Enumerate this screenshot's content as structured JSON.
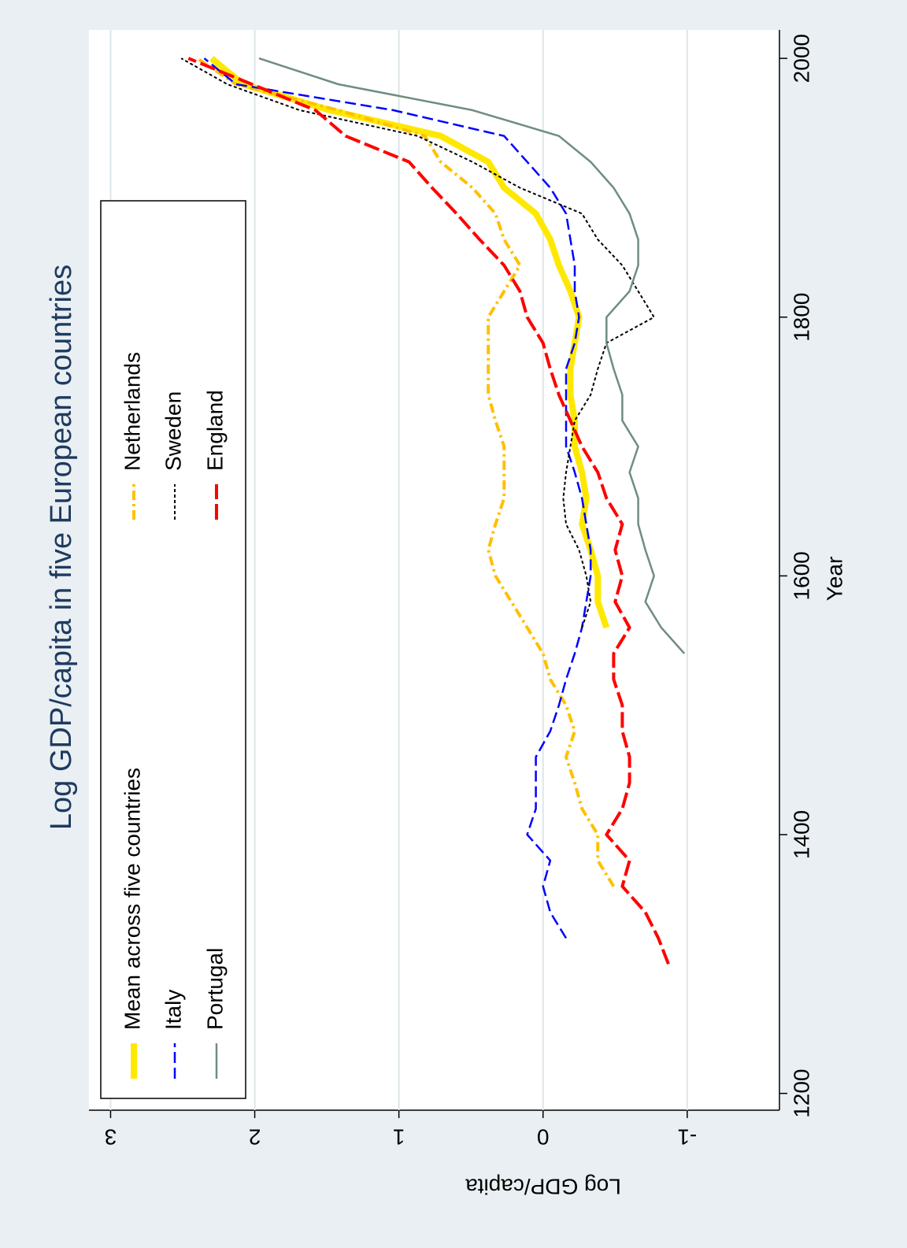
{
  "chart_data": {
    "type": "line",
    "title": "Log GDP/capita in five European countries",
    "x_label": "Year",
    "y_label": "Log GDP/capita",
    "x": [
      1300,
      1320,
      1340,
      1360,
      1380,
      1400,
      1420,
      1440,
      1460,
      1480,
      1500,
      1520,
      1540,
      1560,
      1580,
      1600,
      1620,
      1640,
      1660,
      1680,
      1700,
      1720,
      1740,
      1760,
      1780,
      1800,
      1820,
      1840,
      1860,
      1880,
      1900,
      1920,
      1940,
      1960,
      1980,
      2000
    ],
    "xlim": [
      1187,
      2022
    ],
    "xticks": [
      1200,
      1400,
      1600,
      1800,
      2000
    ],
    "ylim": [
      -1.64,
      3.15
    ],
    "yticks": [
      -1,
      0,
      1,
      2,
      3
    ],
    "grid": true,
    "series": [
      {
        "name": "Mean across five countries",
        "color": "#ffe800",
        "values": [
          null,
          null,
          null,
          null,
          null,
          null,
          null,
          null,
          null,
          null,
          null,
          null,
          null,
          -0.44,
          -0.38,
          -0.38,
          -0.33,
          -0.27,
          -0.3,
          -0.27,
          -0.22,
          -0.22,
          -0.19,
          -0.19,
          -0.22,
          -0.25,
          -0.19,
          -0.11,
          -0.05,
          0.05,
          0.27,
          0.38,
          0.71,
          1.48,
          2.08,
          2.3
        ]
      },
      {
        "name": "Netherlands",
        "color": "#ffc000",
        "values": [
          null,
          null,
          null,
          -0.49,
          -0.38,
          -0.38,
          -0.27,
          -0.22,
          -0.16,
          -0.22,
          -0.16,
          -0.05,
          0,
          0.11,
          0.22,
          0.33,
          0.38,
          0.33,
          0.27,
          0.27,
          0.27,
          0.33,
          0.38,
          0.38,
          0.38,
          0.38,
          0.27,
          0.16,
          0.27,
          0.33,
          0.49,
          0.71,
          0.82,
          1.42,
          2.13,
          2.4
        ]
      },
      {
        "name": "Italy",
        "color": "#0000ff",
        "values": [
          null,
          -0.16,
          -0.05,
          0,
          -0.05,
          0.11,
          0.05,
          0.05,
          0.05,
          -0.05,
          -0.11,
          -0.16,
          -0.22,
          -0.27,
          -0.3,
          -0.33,
          -0.33,
          -0.3,
          -0.27,
          -0.22,
          -0.16,
          -0.16,
          -0.16,
          -0.16,
          -0.22,
          -0.25,
          -0.22,
          -0.22,
          -0.19,
          -0.16,
          -0.05,
          0.11,
          0.27,
          1.04,
          2.13,
          2.35
        ]
      },
      {
        "name": "Sweden",
        "color": "#000000",
        "values": [
          null,
          null,
          null,
          null,
          null,
          null,
          null,
          null,
          null,
          null,
          null,
          null,
          null,
          -0.27,
          -0.33,
          -0.3,
          -0.25,
          -0.16,
          -0.14,
          -0.16,
          -0.19,
          -0.22,
          -0.33,
          -0.38,
          -0.44,
          -0.77,
          -0.66,
          -0.55,
          -0.38,
          -0.27,
          0.16,
          0.49,
          0.87,
          1.69,
          2.19,
          2.51
        ]
      },
      {
        "name": "Portugal",
        "color": "#6f8d80",
        "values": [
          null,
          null,
          null,
          null,
          null,
          null,
          null,
          null,
          null,
          null,
          null,
          null,
          -0.98,
          -0.82,
          -0.71,
          -0.77,
          -0.71,
          -0.66,
          -0.66,
          -0.6,
          -0.66,
          -0.55,
          -0.55,
          -0.49,
          -0.44,
          -0.44,
          -0.6,
          -0.66,
          -0.66,
          -0.6,
          -0.49,
          -0.33,
          -0.11,
          0.49,
          1.42,
          1.97
        ]
      },
      {
        "name": "England",
        "color": "#ff0000",
        "values": [
          -0.87,
          -0.8,
          -0.71,
          -0.55,
          -0.6,
          -0.44,
          -0.55,
          -0.6,
          -0.6,
          -0.55,
          -0.55,
          -0.49,
          -0.49,
          -0.6,
          -0.5,
          -0.55,
          -0.5,
          -0.55,
          -0.44,
          -0.38,
          -0.27,
          -0.19,
          -0.11,
          -0.05,
          0,
          0.11,
          0.16,
          0.27,
          0.44,
          0.6,
          0.77,
          0.93,
          1.37,
          1.58,
          2.02,
          2.46
        ]
      }
    ]
  }
}
